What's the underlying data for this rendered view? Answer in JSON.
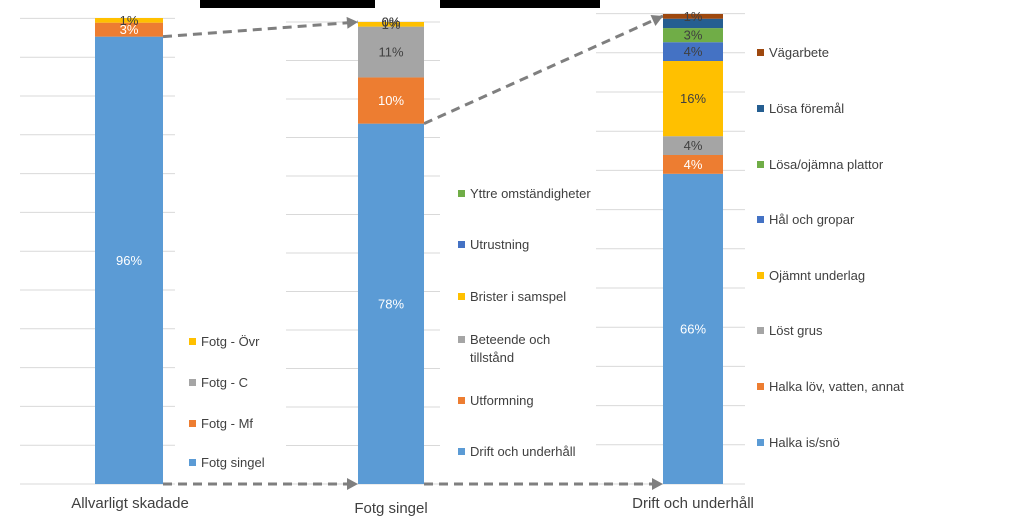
{
  "chart_data": [
    {
      "type": "bar",
      "stacked": true,
      "category": "Allvarligt skadade",
      "ylim": [
        0,
        100
      ],
      "grid": true,
      "legend_position": "right",
      "series": [
        {
          "name": "Fotg singel",
          "value": 96,
          "label": "96%",
          "color": "#5B9BD5"
        },
        {
          "name": "Fotg - Mf",
          "value": 3,
          "label": "3%",
          "color": "#ED7D31"
        },
        {
          "name": "Fotg - C",
          "value": 0,
          "label": "",
          "color": "#A5A5A5"
        },
        {
          "name": "Fotg - Övr",
          "value": 1,
          "label": "1%",
          "color": "#FFC000"
        }
      ]
    },
    {
      "type": "bar",
      "stacked": true,
      "category": "Fotg singel",
      "ylim": [
        0,
        100
      ],
      "grid": true,
      "legend_position": "right",
      "series": [
        {
          "name": "Drift och underhåll",
          "value": 78,
          "label": "78%",
          "color": "#5B9BD5"
        },
        {
          "name": "Utformning",
          "value": 10,
          "label": "10%",
          "color": "#ED7D31"
        },
        {
          "name": "Beteende och tillstånd",
          "value": 11,
          "label": "11%",
          "color": "#A5A5A5"
        },
        {
          "name": "Brister i samspel",
          "value": 1,
          "label": "1%",
          "color": "#FFC000"
        },
        {
          "name": "Utrustning",
          "value": 0,
          "label": "0%",
          "color": "#4472C4"
        },
        {
          "name": "Yttre omständigheter",
          "value": 0,
          "label": "0%",
          "color": "#70AD47"
        }
      ]
    },
    {
      "type": "bar",
      "stacked": true,
      "category": "Drift och underhåll",
      "ylim": [
        0,
        100
      ],
      "grid": true,
      "legend_position": "right",
      "series": [
        {
          "name": "Halka is/snö",
          "value": 66,
          "label": "66%",
          "color": "#5B9BD5"
        },
        {
          "name": "Halka löv, vatten, annat",
          "value": 4,
          "label": "4%",
          "color": "#ED7D31"
        },
        {
          "name": "Löst grus",
          "value": 4,
          "label": "4%",
          "color": "#A5A5A5"
        },
        {
          "name": "Ojämnt underlag",
          "value": 16,
          "label": "16%",
          "color": "#FFC000"
        },
        {
          "name": "Hål och gropar",
          "value": 4,
          "label": "4%",
          "color": "#4472C4"
        },
        {
          "name": "Lösa/ojämna plattor",
          "value": 3,
          "label": "3%",
          "color": "#70AD47"
        },
        {
          "name": "Lösa föremål",
          "value": 2,
          "label": "",
          "color": "#255E91"
        },
        {
          "name": "Vägarbete",
          "value": 1,
          "label": "1%",
          "color": "#9E480E"
        }
      ]
    }
  ],
  "colors": {
    "connector": "#7F7F7F",
    "gridline": "#D9D9D9",
    "label_light": "#FFFFFF",
    "label_dark": "#404040",
    "text": "#404040"
  }
}
